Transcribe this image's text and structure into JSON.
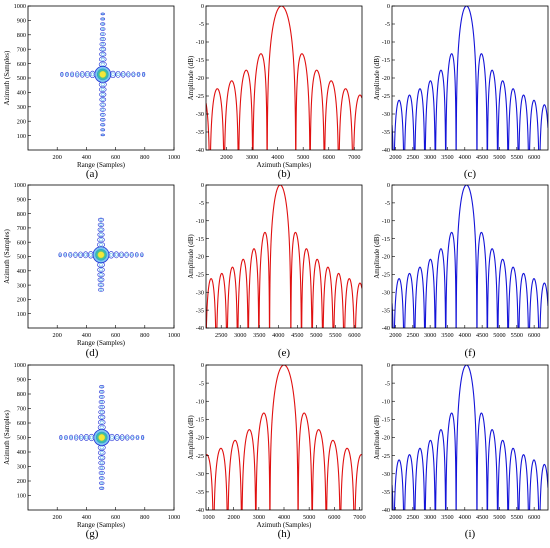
{
  "panel_labels": [
    "(a)",
    "(b)",
    "(c)",
    "(d)",
    "(e)",
    "(f)",
    "(g)",
    "(h)",
    "(i)"
  ],
  "colors": {
    "contour_outer": "#1f2fd6",
    "contour_mid": "#2aa0e6",
    "contour_core": "#f2e83a",
    "profile_range": "#e01010",
    "profile_azimuth": "#1414d8"
  },
  "chart_data": [
    {
      "panel": "(a)",
      "type": "contour",
      "xlabel": "Range (Samples)",
      "ylabel": "Azimuth (Samples)",
      "xlim": [
        0,
        1000
      ],
      "ylim": [
        0,
        1000
      ],
      "xticks": [
        200,
        400,
        600,
        800,
        1000
      ],
      "yticks": [
        100,
        200,
        300,
        400,
        500,
        600,
        700,
        800,
        900,
        1000
      ],
      "center": [
        512,
        525
      ],
      "sidelobe_spacing": 35,
      "n_range_sidelobes": 8,
      "n_azimuth_sidelobes": 12
    },
    {
      "panel": "(b)",
      "type": "line",
      "xlabel": "Azimuth (Samples)",
      "ylabel": "Amplitude (dB)",
      "xlim": [
        1200,
        7300
      ],
      "ylim": [
        -40,
        0
      ],
      "xticks": [
        2000,
        3000,
        4000,
        5000,
        6000,
        7000
      ],
      "yticks": [
        0,
        -5,
        -10,
        -15,
        -20,
        -25,
        -30,
        -35,
        -40
      ],
      "series": [
        {
          "peak_x": 4150,
          "null_spacing": 560,
          "color": "#e01010"
        }
      ]
    },
    {
      "panel": "(c)",
      "type": "line",
      "xlabel": "",
      "ylabel": "Amplitude (dB)",
      "xlim": [
        1900,
        6400
      ],
      "ylim": [
        -40,
        0
      ],
      "xticks": [
        2000,
        2500,
        3000,
        3500,
        4000,
        4500,
        5000,
        5500,
        6000
      ],
      "yticks": [
        0,
        -5,
        -10,
        -15,
        -20,
        -25,
        -30,
        -35,
        -40
      ],
      "series": [
        {
          "peak_x": 4050,
          "null_spacing": 300,
          "color": "#1414d8"
        }
      ]
    },
    {
      "panel": "(d)",
      "type": "contour",
      "xlabel": "Range (Samples)",
      "ylabel": "Azimuth (Samples)",
      "xlim": [
        0,
        1000
      ],
      "ylim": [
        0,
        1000
      ],
      "xticks": [
        200,
        400,
        600,
        800,
        1000
      ],
      "yticks": [
        100,
        200,
        300,
        400,
        500,
        600,
        700,
        800,
        900,
        1000
      ],
      "center": [
        500,
        512
      ],
      "sidelobe_spacing": 35,
      "n_range_sidelobes": 8,
      "n_azimuth_sidelobes": 7
    },
    {
      "panel": "(e)",
      "type": "line",
      "xlabel": "",
      "ylabel": "Amplitude (dB)",
      "xlim": [
        2100,
        6200
      ],
      "ylim": [
        -40,
        0
      ],
      "xticks": [
        2500,
        3000,
        3500,
        4000,
        4500,
        5000,
        5500,
        6000
      ],
      "yticks": [
        0,
        -5,
        -10,
        -15,
        -20,
        -25,
        -30,
        -35,
        -40
      ],
      "series": [
        {
          "peak_x": 4050,
          "null_spacing": 280,
          "color": "#e01010"
        }
      ]
    },
    {
      "panel": "(f)",
      "type": "line",
      "xlabel": "",
      "ylabel": "Amplitude (dB)",
      "xlim": [
        1900,
        6400
      ],
      "ylim": [
        -40,
        0
      ],
      "xticks": [
        2000,
        2500,
        3000,
        3500,
        4000,
        4500,
        5000,
        5500,
        6000
      ],
      "yticks": [
        0,
        -5,
        -10,
        -15,
        -20,
        -25,
        -30,
        -35,
        -40
      ],
      "series": [
        {
          "peak_x": 4050,
          "null_spacing": 300,
          "color": "#1414d8"
        }
      ]
    },
    {
      "panel": "(g)",
      "type": "contour",
      "xlabel": "Range (Samples)",
      "ylabel": "Azimuth (Samples)",
      "xlim": [
        0,
        1000
      ],
      "ylim": [
        0,
        1000
      ],
      "xticks": [
        200,
        400,
        600,
        800,
        1000
      ],
      "yticks": [
        100,
        200,
        300,
        400,
        500,
        600,
        700,
        800,
        900,
        1000
      ],
      "center": [
        505,
        500
      ],
      "sidelobe_spacing": 35,
      "n_range_sidelobes": 8,
      "n_azimuth_sidelobes": 10
    },
    {
      "panel": "(h)",
      "type": "line",
      "xlabel": "Azimuth (Samples)",
      "ylabel": "Amplitude (dB)",
      "xlim": [
        900,
        7100
      ],
      "ylim": [
        -40,
        0
      ],
      "xticks": [
        1000,
        2000,
        3000,
        4000,
        5000,
        6000,
        7000
      ],
      "yticks": [
        0,
        -5,
        -10,
        -15,
        -20,
        -25,
        -30,
        -35,
        -40
      ],
      "series": [
        {
          "peak_x": 4000,
          "null_spacing": 560,
          "color": "#e01010"
        }
      ]
    },
    {
      "panel": "(i)",
      "type": "line",
      "xlabel": "",
      "ylabel": "Amplitude (dB)",
      "xlim": [
        1900,
        6400
      ],
      "ylim": [
        -40,
        0
      ],
      "xticks": [
        2000,
        2500,
        3000,
        3500,
        4000,
        4500,
        5000,
        5500,
        6000
      ],
      "yticks": [
        0,
        -5,
        -10,
        -15,
        -20,
        -25,
        -30,
        -35,
        -40
      ],
      "series": [
        {
          "peak_x": 4050,
          "null_spacing": 300,
          "color": "#1414d8"
        }
      ]
    }
  ]
}
